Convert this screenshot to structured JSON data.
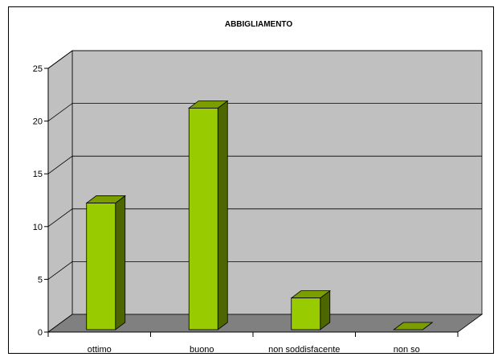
{
  "chart_data": {
    "type": "bar",
    "title": "ABBIGLIAMENTO",
    "categories": [
      "ottimo",
      "buono",
      "non soddisfacente",
      "non so"
    ],
    "values": [
      12,
      21,
      3,
      0
    ],
    "ylim": [
      0,
      25
    ],
    "yticks": [
      0,
      5,
      10,
      15,
      20,
      25
    ],
    "grid": true,
    "legend": "none",
    "colors": {
      "bar_front": "#99cc00",
      "bar_side": "#4d6600",
      "bar_top": "#7a9e00",
      "wall": "#c0c0c0",
      "floor": "#808080",
      "gridline": "#000000"
    }
  }
}
